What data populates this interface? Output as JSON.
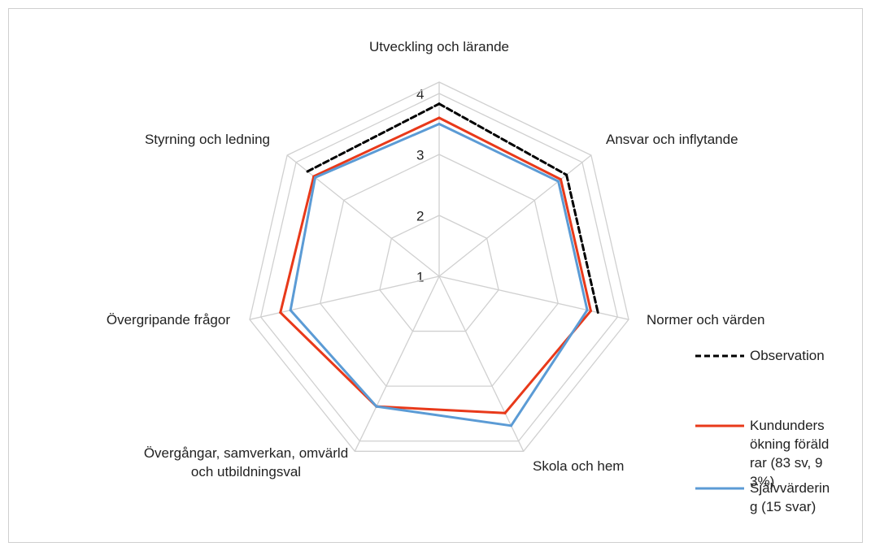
{
  "chart_data": {
    "type": "radar",
    "categories": [
      "Utveckling och lärande",
      "Ansvar och inflytande",
      "Normer och värden",
      "Skola och hem",
      "Övergångar, samverkan, omvärld och utbildningsval",
      "Övergripande frågor",
      "Styrning och ledning"
    ],
    "rlim": [
      1,
      4
    ],
    "rticks": [
      1,
      2,
      3,
      4
    ],
    "grid": true,
    "series": [
      {
        "name": "Observation",
        "color": "#000000",
        "dash": true,
        "values": [
          3.83,
          3.67,
          3.67,
          null,
          null,
          null,
          3.76
        ]
      },
      {
        "name": "Kundundersökning föräldrar (83 sv, 93%)",
        "color": "#e8391a",
        "values": [
          3.6,
          3.55,
          3.55,
          3.49,
          3.37,
          3.67,
          3.63
        ]
      },
      {
        "name": "Självvärdering (15 svar)",
        "color": "#5b9bd5",
        "values": [
          3.5,
          3.5,
          3.49,
          3.72,
          3.37,
          3.5,
          3.6
        ]
      }
    ]
  }
}
